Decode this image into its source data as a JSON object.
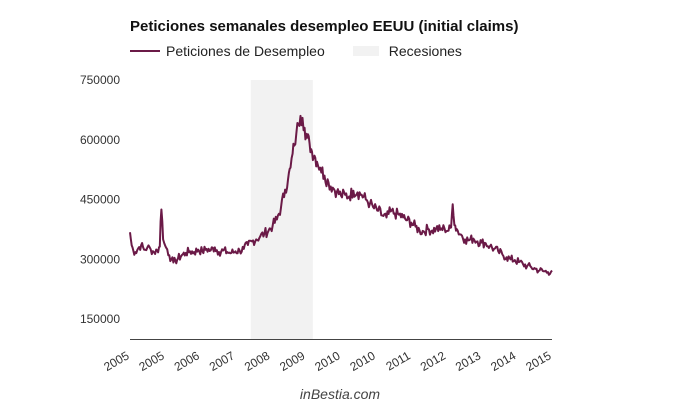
{
  "chart_data": {
    "type": "line",
    "title": "Peticiones semanales desempleo EEUU (initial claims)",
    "xlabel": "",
    "ylabel": "",
    "ylim": [
      100000,
      750000
    ],
    "yticks": [
      {
        "value": 150000,
        "label": "150000"
      },
      {
        "value": 300000,
        "label": "300000"
      },
      {
        "value": 450000,
        "label": "450000"
      },
      {
        "value": 600000,
        "label": "600000"
      },
      {
        "value": 750000,
        "label": "750000"
      }
    ],
    "xlim": [
      2005.0,
      2015.2
    ],
    "xticks": [
      {
        "value": 2005.0,
        "label": "2005"
      },
      {
        "value": 2005.85,
        "label": "2005"
      },
      {
        "value": 2006.7,
        "label": "2006"
      },
      {
        "value": 2007.55,
        "label": "2007"
      },
      {
        "value": 2008.4,
        "label": "2008"
      },
      {
        "value": 2009.25,
        "label": "2009"
      },
      {
        "value": 2010.1,
        "label": "2010"
      },
      {
        "value": 2010.95,
        "label": "2010"
      },
      {
        "value": 2011.8,
        "label": "2011"
      },
      {
        "value": 2012.65,
        "label": "2012"
      },
      {
        "value": 2013.5,
        "label": "2013"
      },
      {
        "value": 2014.35,
        "label": "2014"
      },
      {
        "value": 2015.2,
        "label": "2015"
      }
    ],
    "grid": false,
    "legend": "top-left",
    "recession": {
      "name": "Recesiones",
      "start": 2007.92,
      "end": 2009.42,
      "color": "#f2f2f2"
    },
    "series": [
      {
        "name": "Peticiones de Desempleo",
        "color": "#6b1a47",
        "points": [
          [
            2005.0,
            368000
          ],
          [
            2005.04,
            335000
          ],
          [
            2005.08,
            322000
          ],
          [
            2005.13,
            318000
          ],
          [
            2005.2,
            328000
          ],
          [
            2005.27,
            336000
          ],
          [
            2005.34,
            324000
          ],
          [
            2005.42,
            330000
          ],
          [
            2005.5,
            325000
          ],
          [
            2005.58,
            318000
          ],
          [
            2005.66,
            322000
          ],
          [
            2005.72,
            332000
          ],
          [
            2005.74,
            395000
          ],
          [
            2005.76,
            425000
          ],
          [
            2005.78,
            395000
          ],
          [
            2005.8,
            350000
          ],
          [
            2005.83,
            340000
          ],
          [
            2005.86,
            332000
          ],
          [
            2005.9,
            325000
          ],
          [
            2005.95,
            310000
          ],
          [
            2006.0,
            300000
          ],
          [
            2006.05,
            292000
          ],
          [
            2006.1,
            296000
          ],
          [
            2006.16,
            302000
          ],
          [
            2006.25,
            310000
          ],
          [
            2006.35,
            316000
          ],
          [
            2006.45,
            320000
          ],
          [
            2006.55,
            318000
          ],
          [
            2006.65,
            324000
          ],
          [
            2006.75,
            320000
          ],
          [
            2006.85,
            326000
          ],
          [
            2006.95,
            322000
          ],
          [
            2007.05,
            330000
          ],
          [
            2007.15,
            318000
          ],
          [
            2007.25,
            322000
          ],
          [
            2007.35,
            318000
          ],
          [
            2007.45,
            316000
          ],
          [
            2007.55,
            320000
          ],
          [
            2007.65,
            322000
          ],
          [
            2007.75,
            326000
          ],
          [
            2007.85,
            336000
          ],
          [
            2007.95,
            345000
          ],
          [
            2008.05,
            350000
          ],
          [
            2008.15,
            358000
          ],
          [
            2008.25,
            365000
          ],
          [
            2008.35,
            372000
          ],
          [
            2008.45,
            385000
          ],
          [
            2008.55,
            400000
          ],
          [
            2008.65,
            430000
          ],
          [
            2008.75,
            475000
          ],
          [
            2008.82,
            500000
          ],
          [
            2008.88,
            530000
          ],
          [
            2008.93,
            565000
          ],
          [
            2008.97,
            585000
          ],
          [
            2009.02,
            615000
          ],
          [
            2009.07,
            640000
          ],
          [
            2009.12,
            660000
          ],
          [
            2009.17,
            655000
          ],
          [
            2009.22,
            630000
          ],
          [
            2009.28,
            605000
          ],
          [
            2009.34,
            590000
          ],
          [
            2009.4,
            570000
          ],
          [
            2009.46,
            560000
          ],
          [
            2009.52,
            545000
          ],
          [
            2009.6,
            530000
          ],
          [
            2009.7,
            510000
          ],
          [
            2009.8,
            492000
          ],
          [
            2009.9,
            480000
          ],
          [
            2010.0,
            470000
          ],
          [
            2010.1,
            460000
          ],
          [
            2010.2,
            462000
          ],
          [
            2010.3,
            458000
          ],
          [
            2010.4,
            472000
          ],
          [
            2010.5,
            468000
          ],
          [
            2010.6,
            462000
          ],
          [
            2010.7,
            450000
          ],
          [
            2010.8,
            440000
          ],
          [
            2010.9,
            428000
          ],
          [
            2011.0,
            422000
          ],
          [
            2011.1,
            410000
          ],
          [
            2011.2,
            405000
          ],
          [
            2011.3,
            420000
          ],
          [
            2011.4,
            415000
          ],
          [
            2011.5,
            412000
          ],
          [
            2011.6,
            405000
          ],
          [
            2011.7,
            398000
          ],
          [
            2011.8,
            392000
          ],
          [
            2011.9,
            382000
          ],
          [
            2012.0,
            372000
          ],
          [
            2012.1,
            370000
          ],
          [
            2012.2,
            376000
          ],
          [
            2012.3,
            372000
          ],
          [
            2012.4,
            378000
          ],
          [
            2012.5,
            374000
          ],
          [
            2012.6,
            378000
          ],
          [
            2012.7,
            372000
          ],
          [
            2012.76,
            380000
          ],
          [
            2012.78,
            412000
          ],
          [
            2012.8,
            438000
          ],
          [
            2012.82,
            410000
          ],
          [
            2012.86,
            385000
          ],
          [
            2012.92,
            372000
          ],
          [
            2013.0,
            362000
          ],
          [
            2013.1,
            350000
          ],
          [
            2013.2,
            348000
          ],
          [
            2013.3,
            352000
          ],
          [
            2013.4,
            345000
          ],
          [
            2013.5,
            342000
          ],
          [
            2013.6,
            340000
          ],
          [
            2013.7,
            333000
          ],
          [
            2013.8,
            326000
          ],
          [
            2013.9,
            320000
          ],
          [
            2014.0,
            312000
          ],
          [
            2014.1,
            305000
          ],
          [
            2014.2,
            300000
          ],
          [
            2014.3,
            298000
          ],
          [
            2014.4,
            293000
          ],
          [
            2014.5,
            288000
          ],
          [
            2014.6,
            283000
          ],
          [
            2014.7,
            280000
          ],
          [
            2014.8,
            276000
          ],
          [
            2014.9,
            272000
          ],
          [
            2015.0,
            270000
          ],
          [
            2015.1,
            268000
          ],
          [
            2015.2,
            272000
          ]
        ]
      }
    ]
  },
  "footer": {
    "source": "inBestia.com"
  }
}
